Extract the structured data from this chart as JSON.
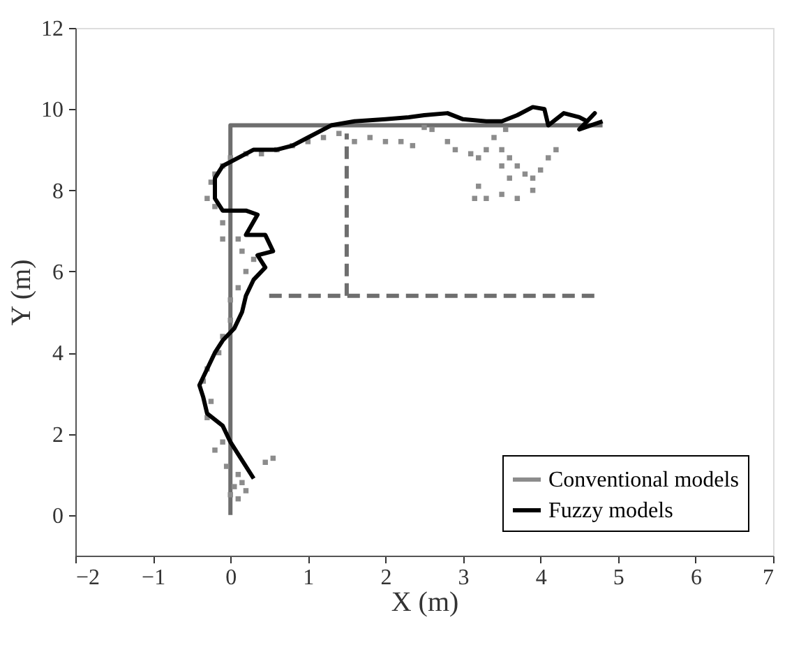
{
  "chart_data": {
    "type": "line",
    "xlabel": "X (m)",
    "ylabel": "Y (m)",
    "xlim": [
      -2,
      7
    ],
    "ylim": [
      -1,
      12
    ],
    "xticks": [
      -2,
      -1,
      0,
      1,
      2,
      3,
      4,
      5,
      6,
      7
    ],
    "yticks": [
      0,
      2,
      4,
      6,
      8,
      10,
      12
    ],
    "grid": false,
    "legend": "bottom right",
    "series": [
      {
        "type": "line",
        "color": "#6e6e6e",
        "line_style": "solid",
        "x": [
          0,
          0,
          4.8
        ],
        "values": [
          0,
          9.6,
          9.6
        ]
      },
      {
        "type": "line",
        "color": "#6e6e6e",
        "line_style": "dashed",
        "x": [
          0.5,
          4.7
        ],
        "values": [
          5.4,
          5.4
        ]
      },
      {
        "type": "line",
        "color": "#6e6e6e",
        "line_style": "dashed",
        "x": [
          1.5,
          1.5
        ],
        "values": [
          5.4,
          9.4
        ]
      },
      {
        "name": "Conventional models",
        "type": "scatter",
        "marker": "square",
        "color": "#8c8c8c",
        "x": [
          0.0,
          0.1,
          0.05,
          0.15,
          0.2,
          0.1,
          -0.05,
          0.55,
          0.45,
          -0.2,
          -0.1,
          -0.3,
          -0.25,
          -0.35,
          -0.3,
          -0.15,
          -0.1,
          0.0,
          0.0,
          0.1,
          0.2,
          0.3,
          0.15,
          0.1,
          -0.1,
          -0.1,
          -0.2,
          -0.3,
          -0.25,
          -0.2,
          -0.1,
          0.0,
          0.2,
          0.4,
          0.6,
          0.8,
          1.0,
          1.2,
          1.4,
          1.6,
          1.8,
          2.0,
          2.2,
          2.35,
          2.5,
          2.6,
          2.8,
          2.9,
          3.1,
          3.2,
          3.3,
          3.4,
          3.55,
          3.5,
          3.6,
          3.7,
          3.5,
          3.6,
          3.8,
          3.9,
          4.0,
          4.1,
          4.2,
          3.9,
          3.7,
          3.5,
          3.3,
          3.15,
          3.2
        ],
        "values": [
          0.5,
          0.4,
          0.7,
          0.8,
          0.6,
          1.0,
          1.2,
          1.4,
          1.3,
          1.6,
          1.8,
          2.4,
          2.8,
          3.3,
          3.6,
          4.0,
          4.4,
          4.8,
          5.3,
          5.6,
          6.0,
          6.3,
          6.5,
          6.8,
          6.8,
          7.2,
          7.6,
          7.8,
          8.2,
          8.4,
          8.6,
          8.8,
          8.9,
          8.9,
          9.0,
          9.1,
          9.2,
          9.3,
          9.4,
          9.2,
          9.3,
          9.2,
          9.2,
          9.1,
          9.55,
          9.5,
          9.2,
          9.0,
          8.9,
          8.8,
          9.0,
          9.3,
          9.5,
          9.0,
          8.8,
          8.6,
          8.6,
          8.3,
          8.4,
          8.3,
          8.5,
          8.8,
          9.0,
          8.0,
          7.8,
          7.9,
          7.8,
          7.8,
          8.1
        ]
      },
      {
        "name": "Fuzzy models",
        "type": "line",
        "color": "#000000",
        "line_style": "solid",
        "x": [
          0.3,
          0.1,
          0.0,
          -0.1,
          -0.3,
          -0.35,
          -0.4,
          -0.3,
          -0.2,
          -0.1,
          0.05,
          0.15,
          0.2,
          0.3,
          0.45,
          0.35,
          0.55,
          0.45,
          0.2,
          0.35,
          0.2,
          -0.1,
          -0.2,
          -0.2,
          -0.1,
          0.1,
          0.3,
          0.6,
          0.8,
          1.0,
          1.3,
          1.6,
          2.0,
          2.3,
          2.5,
          2.8,
          3.0,
          3.3,
          3.5,
          3.7,
          3.9,
          4.05,
          4.1,
          4.3,
          4.5,
          4.6,
          4.7,
          4.5,
          4.8
        ],
        "values": [
          0.9,
          1.5,
          1.8,
          2.2,
          2.5,
          2.9,
          3.2,
          3.6,
          4.0,
          4.3,
          4.6,
          5.0,
          5.4,
          5.8,
          6.1,
          6.4,
          6.5,
          6.9,
          6.9,
          7.4,
          7.5,
          7.5,
          7.8,
          8.3,
          8.6,
          8.8,
          9.0,
          9.0,
          9.1,
          9.3,
          9.6,
          9.7,
          9.75,
          9.8,
          9.85,
          9.9,
          9.75,
          9.7,
          9.7,
          9.85,
          10.05,
          10.0,
          9.6,
          9.9,
          9.8,
          9.7,
          9.9,
          9.5,
          9.7
        ]
      }
    ]
  }
}
